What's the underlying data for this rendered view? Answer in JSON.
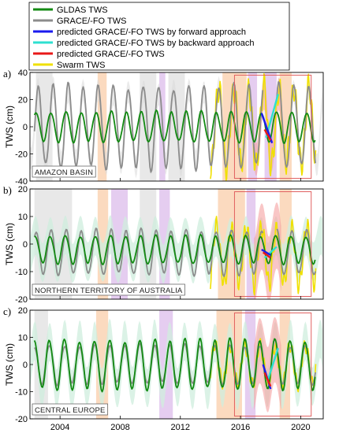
{
  "figure": {
    "legend": [
      {
        "label": "GLDAS TWS",
        "color": "#138a13"
      },
      {
        "label": "GRACE/-FO TWS",
        "color": "#8c8c8c"
      },
      {
        "label": "predicted GRACE/-FO TWS by forward approach",
        "color": "#1a1aee"
      },
      {
        "label": "predicted GRACE/-FO TWS by backward approach",
        "color": "#2ee0d0"
      },
      {
        "label": "predicted GRACE/-FO TWS",
        "color": "#e81818"
      },
      {
        "label": "Swarm TWS",
        "color": "#f0e000"
      }
    ],
    "shade_colors": {
      "neutral": "#e6e6e6",
      "el_nino": "#fbd6b8",
      "la_nina": "#e2c8ee",
      "band_green": "#cfeedd",
      "band_red": "#f5a0a0",
      "highlight_box": "#e06060"
    }
  },
  "chart_data": [
    {
      "type": "line",
      "panel_letter": "a)",
      "region": "AMAZON BASIN",
      "ylabel": "TWS (cm)",
      "xlim": [
        2002.0,
        2021.5
      ],
      "ylim": [
        -40,
        40
      ],
      "yticks": [
        "-40",
        "-20",
        "0",
        "20",
        "40"
      ],
      "xticks": [
        "2004",
        "2008",
        "2012",
        "2016",
        "2020"
      ],
      "shading": [
        {
          "kind": "neutral",
          "x": [
            2002.4,
            2003.5
          ]
        },
        {
          "kind": "el_nino",
          "x": [
            2006.5,
            2007.1
          ]
        },
        {
          "kind": "neutral",
          "x": [
            2009.3,
            2010.4
          ]
        },
        {
          "kind": "la_nina",
          "x": [
            2010.6,
            2011.0
          ]
        },
        {
          "kind": "neutral",
          "x": [
            2011.2,
            2012.3
          ]
        },
        {
          "kind": "el_nino",
          "x": [
            2014.8,
            2016.4
          ]
        },
        {
          "kind": "la_nina",
          "x": [
            2016.5,
            2017.1
          ]
        },
        {
          "kind": "la_nina",
          "x": [
            2017.6,
            2018.4
          ]
        },
        {
          "kind": "el_nino",
          "x": [
            2018.6,
            2019.4
          ]
        }
      ],
      "highlight_box": {
        "x": [
          2015.6,
          2020.7
        ],
        "y": [
          -38,
          38
        ]
      },
      "gldas": {
        "mean": 0,
        "amplitude": 11,
        "phase": 0.15
      },
      "grace": {
        "mean": 0,
        "amplitude": 30,
        "phase": 0.3,
        "x": [
          2002.3,
          2017.5
        ],
        "x2": [
          2018.4,
          2021.0
        ]
      },
      "swarm": {
        "mean": 0,
        "amplitude": 28,
        "phase": 0.3,
        "x": [
          2014.0,
          2021.0
        ]
      },
      "forward": {
        "x": [
          2017.4,
          2018.1
        ],
        "y": [
          10,
          -12
        ]
      },
      "backward": {
        "x": [
          2017.7,
          2018.5
        ],
        "y": [
          -8,
          24
        ]
      },
      "predicted": {
        "x": [
          2017.6,
          2018.0
        ],
        "y": [
          -2,
          -10
        ]
      }
    },
    {
      "type": "line",
      "panel_letter": "b)",
      "region": "NORTHERN TERRITORY OF AUSTRALIA",
      "ylabel": "TWS (cm)",
      "xlim": [
        2002.0,
        2021.5
      ],
      "ylim": [
        -20,
        20
      ],
      "yticks": [
        "-20",
        "-10",
        "0",
        "10",
        "20"
      ],
      "xticks": [
        "2004",
        "2008",
        "2012",
        "2016",
        "2020"
      ],
      "shading": [
        {
          "kind": "neutral",
          "x": [
            2002.3,
            2004.8
          ]
        },
        {
          "kind": "el_nino",
          "x": [
            2006.5,
            2007.2
          ]
        },
        {
          "kind": "la_nina",
          "x": [
            2007.4,
            2008.5
          ]
        },
        {
          "kind": "neutral",
          "x": [
            2009.3,
            2010.4
          ]
        },
        {
          "kind": "la_nina",
          "x": [
            2010.6,
            2011.3
          ]
        },
        {
          "kind": "el_nino",
          "x": [
            2014.5,
            2016.3
          ]
        },
        {
          "kind": "la_nina",
          "x": [
            2016.4,
            2017.0
          ]
        },
        {
          "kind": "el_nino",
          "x": [
            2018.6,
            2019.4
          ]
        }
      ],
      "highlight_box": {
        "x": [
          2015.6,
          2020.7
        ],
        "y": [
          -19,
          19
        ]
      },
      "gldas": {
        "mean": -2,
        "amplitude": 5,
        "phase": 0.1
      },
      "grace": {
        "mean": -3,
        "amplitude": 8,
        "phase": 0.15,
        "x": [
          2002.3,
          2017.5
        ],
        "x2": [
          2018.4,
          2021.0
        ]
      },
      "swarm": {
        "mean": -4,
        "amplitude": 10,
        "phase": 0.15,
        "x": [
          2014.0,
          2021.0
        ]
      },
      "forward": {
        "x": [
          2017.4,
          2018.0
        ],
        "y": [
          -2,
          -4
        ]
      },
      "backward": {
        "x": [
          2017.6,
          2018.4
        ],
        "y": [
          -5,
          -1
        ]
      },
      "predicted": {
        "x": [
          2017.5,
          2018.0
        ],
        "y": [
          -3,
          -5
        ]
      }
    },
    {
      "type": "line",
      "panel_letter": "c)",
      "region": "CENTRAL EUROPE",
      "ylabel": "TWS (cm)",
      "xlim": [
        2002.0,
        2021.5
      ],
      "ylim": [
        -20,
        20
      ],
      "yticks": [
        "-20",
        "-10",
        "0",
        "10",
        "20"
      ],
      "xticks": [
        "2004",
        "2008",
        "2012",
        "2016",
        "2020"
      ],
      "shading": [
        {
          "kind": "neutral",
          "x": [
            2002.3,
            2003.2
          ]
        },
        {
          "kind": "el_nino",
          "x": [
            2006.4,
            2007.2
          ]
        },
        {
          "kind": "la_nina",
          "x": [
            2010.6,
            2011.5
          ]
        },
        {
          "kind": "el_nino",
          "x": [
            2014.4,
            2016.1
          ]
        },
        {
          "kind": "la_nina",
          "x": [
            2016.3,
            2017.0
          ]
        },
        {
          "kind": "el_nino",
          "x": [
            2018.6,
            2019.3
          ]
        }
      ],
      "highlight_box": {
        "x": [
          2015.6,
          2020.7
        ],
        "y": [
          -19,
          19
        ]
      },
      "gldas": {
        "mean": 0,
        "amplitude": 9,
        "phase": 0.05
      },
      "grace": {
        "mean": 0,
        "amplitude": 7,
        "phase": 0.05,
        "x": [
          2002.3,
          2017.5
        ],
        "x2": [
          2018.4,
          2021.0
        ]
      },
      "swarm": {
        "mean": 0,
        "amplitude": 7,
        "phase": 0.05,
        "x": [
          2014.0,
          2021.0
        ]
      },
      "forward": {
        "x": [
          2017.5,
          2018.0
        ],
        "y": [
          0,
          -9
        ]
      },
      "backward": {
        "x": [
          2017.8,
          2018.5
        ],
        "y": [
          -6,
          6
        ]
      },
      "predicted": {
        "x": [
          2017.6,
          2018.0
        ],
        "y": [
          -3,
          -8
        ]
      }
    }
  ]
}
